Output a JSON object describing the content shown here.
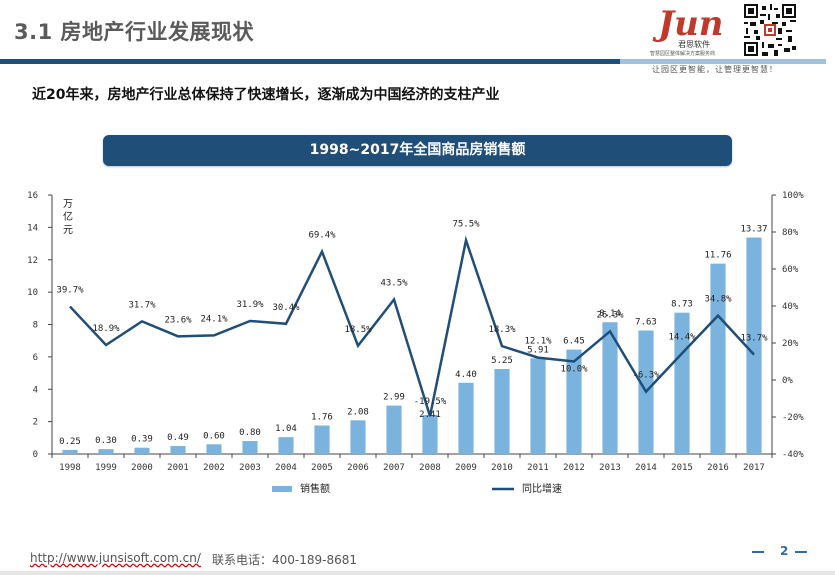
{
  "header": {
    "title": "3.1 房地产行业发展现状",
    "logo_text": "Jun",
    "logo_sub": "君思软件",
    "logo_tag": "智慧园区整体解决方案服务商",
    "slogan": "让园区更智能，让管理更智慧！"
  },
  "subtitle": "近20年来，房地产行业总体保持了快速增长，逐渐成为中国经济的支柱产业",
  "banner": "1998~2017年全国商品房销售额",
  "chart_data": {
    "type": "bar",
    "title": "1998~2017年全国商品房销售额",
    "categories": [
      "1998",
      "1999",
      "2000",
      "2001",
      "2002",
      "2003",
      "2004",
      "2005",
      "2006",
      "2007",
      "2008",
      "2009",
      "2010",
      "2011",
      "2012",
      "2013",
      "2014",
      "2015",
      "2016",
      "2017"
    ],
    "series": [
      {
        "name": "销售额",
        "type": "bar",
        "axis": "left",
        "color": "#7ab3de",
        "values": [
          0.25,
          0.3,
          0.39,
          0.49,
          0.6,
          0.8,
          1.04,
          1.76,
          2.08,
          2.99,
          2.41,
          4.4,
          5.25,
          5.91,
          6.45,
          8.14,
          7.63,
          8.73,
          11.76,
          13.37
        ],
        "labels": [
          "0.25",
          "0.30",
          "0.39",
          "0.49",
          "0.60",
          "0.80",
          "1.04",
          "1.76",
          "2.08",
          "2.99",
          "2.41",
          "4.40",
          "5.25",
          "5.91",
          "6.45",
          "8.14",
          "7.63",
          "8.73",
          "11.76",
          "13.37"
        ]
      },
      {
        "name": "同比增速",
        "type": "line",
        "axis": "right",
        "color": "#1f4e79",
        "values": [
          39.7,
          18.9,
          31.7,
          23.6,
          24.1,
          31.9,
          30.4,
          69.4,
          18.5,
          43.5,
          -19.5,
          75.5,
          18.3,
          12.1,
          10.0,
          26.3,
          -6.3,
          14.4,
          34.8,
          13.7
        ],
        "labels": [
          "39.7%",
          "18.9%",
          "31.7%",
          "23.6%",
          "24.1%",
          "31.9%",
          "30.4%",
          "69.4%",
          "18.5%",
          "43.5%",
          "-19.5%",
          "75.5%",
          "18.3%",
          "12.1%",
          "10.0%",
          "26.3%",
          "-6.3%",
          "14.4%",
          "34.8%",
          "13.7%"
        ]
      }
    ],
    "ylabel": "万亿元",
    "ylim": [
      0,
      16
    ],
    "yticks": [
      "0",
      "2",
      "4",
      "6",
      "8",
      "10",
      "12",
      "14",
      "16"
    ],
    "y2lim": [
      -40,
      100
    ],
    "y2ticks": [
      "-40%",
      "-20%",
      "0%",
      "20%",
      "40%",
      "60%",
      "80%",
      "100%"
    ],
    "grid": false,
    "legend_position": "bottom"
  },
  "footer": {
    "url": "http://www.junsisoft.com.cn/",
    "phone": "联系电话：400-189-8681",
    "page": "2"
  }
}
